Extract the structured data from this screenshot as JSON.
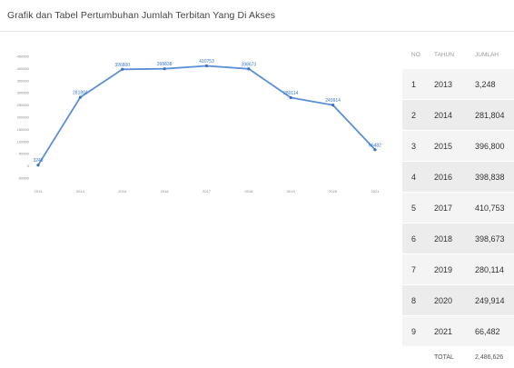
{
  "page": {
    "title": "Grafik dan Tabel Pertumbuhan Jumlah Terbitan Yang Di Akses"
  },
  "colors": {
    "line": "#5b8fd6",
    "marker": "#3b70bf",
    "label": "#3b78c8",
    "grid": "#ececec"
  },
  "chart_data": {
    "type": "line",
    "title": "",
    "xlabel": "",
    "ylabel": "",
    "ylim": [
      -50000,
      450000
    ],
    "yticks": [
      450000,
      400000,
      350000,
      300000,
      250000,
      200000,
      150000,
      100000,
      50000,
      0,
      -50000
    ],
    "categories": [
      "2013",
      "2014",
      "2015",
      "2016",
      "2017",
      "2018",
      "2019",
      "2020",
      "2021"
    ],
    "values": [
      3248,
      281804,
      396800,
      398838,
      410753,
      398673,
      280114,
      249914,
      66482
    ],
    "data_labels": [
      "3248",
      "281804",
      "396800",
      "398838",
      "410753",
      "398673",
      "280114",
      "249914",
      "66482"
    ],
    "grid": false,
    "legend": "none"
  },
  "table": {
    "headers": [
      "NO",
      "TAHUN",
      "JUMLAH"
    ],
    "rows": [
      {
        "no": "1",
        "tahun": "2013",
        "jumlah": "3,248"
      },
      {
        "no": "2",
        "tahun": "2014",
        "jumlah": "281,804"
      },
      {
        "no": "3",
        "tahun": "2015",
        "jumlah": "396,800"
      },
      {
        "no": "4",
        "tahun": "2016",
        "jumlah": "398,838"
      },
      {
        "no": "5",
        "tahun": "2017",
        "jumlah": "410,753"
      },
      {
        "no": "6",
        "tahun": "2018",
        "jumlah": "398,673"
      },
      {
        "no": "7",
        "tahun": "2019",
        "jumlah": "280,114"
      },
      {
        "no": "8",
        "tahun": "2020",
        "jumlah": "249,914"
      },
      {
        "no": "9",
        "tahun": "2021",
        "jumlah": "66,482"
      }
    ],
    "total_label": "TOTAL",
    "total_value": "2,486,626"
  }
}
